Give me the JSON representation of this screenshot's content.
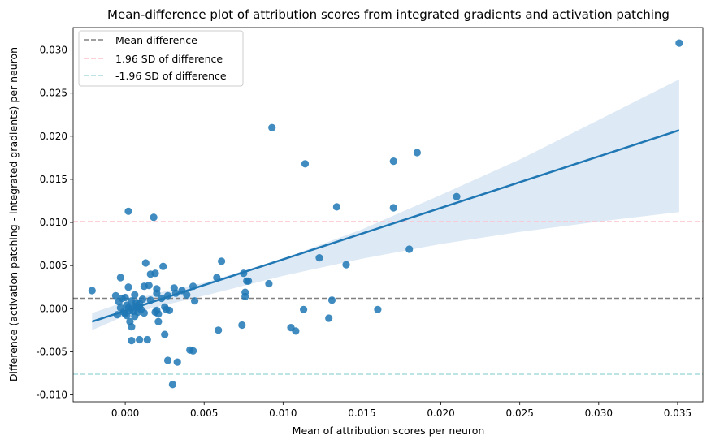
{
  "chart_data": {
    "type": "scatter",
    "title": "Mean-difference plot of attribution scores from integrated gradients and activation patching",
    "xlabel": "Mean of attribution scores per neuron",
    "ylabel": "Difference (activation patching - integrated gradients) per neuron",
    "xlim": [
      -0.0033,
      0.0366
    ],
    "ylim": [
      -0.0108,
      0.0326
    ],
    "x_ticks": [
      "0.000",
      "0.005",
      "0.010",
      "0.015",
      "0.020",
      "0.025",
      "0.030",
      "0.035"
    ],
    "y_ticks": [
      "-0.010",
      "-0.005",
      "0.000",
      "0.005",
      "0.010",
      "0.015",
      "0.020",
      "0.025",
      "0.030"
    ],
    "grid": false,
    "legend_position": "top-left",
    "points": [
      [
        -0.0021,
        0.0021
      ],
      [
        -0.0006,
        0.0015
      ],
      [
        -0.0003,
        0.0036
      ],
      [
        -0.0004,
        0.0008
      ],
      [
        -0.0005,
        -0.0007
      ],
      [
        -0.0002,
        0.0012
      ],
      [
        -0.0001,
        -0.0004
      ],
      [
        0.0,
        -0.0006
      ],
      [
        0.0001,
        0.0004
      ],
      [
        0.0002,
        0.0001
      ],
      [
        0.0003,
        -0.0002
      ],
      [
        0.0004,
        0.0009
      ],
      [
        0.0005,
        -0.0003
      ],
      [
        0.0006,
        0.0016
      ],
      [
        0.0007,
        0.0003
      ],
      [
        0.0008,
        -0.0004
      ],
      [
        0.0009,
        0.0006
      ],
      [
        0.001,
        -0.0001
      ],
      [
        0.0011,
        0.0011
      ],
      [
        0.0012,
        -0.0005
      ],
      [
        0.0002,
        0.0025
      ],
      [
        0.0003,
        -0.0015
      ],
      [
        0.0004,
        -0.0021
      ],
      [
        0.0005,
        0.0002
      ],
      [
        0.0006,
        -0.0009
      ],
      [
        0.0,
        0.0013
      ],
      [
        -0.0003,
        0.0001
      ],
      [
        0.0001,
        -0.0008
      ],
      [
        0.0007,
        0.0007
      ],
      [
        0.0009,
        0.0002
      ],
      [
        0.0013,
        0.0053
      ],
      [
        0.0015,
        0.0027
      ],
      [
        0.0016,
        0.004
      ],
      [
        0.0012,
        0.0026
      ],
      [
        0.0016,
        0.001
      ],
      [
        0.0014,
        -0.0036
      ],
      [
        0.0009,
        -0.0036
      ],
      [
        0.0004,
        -0.0037
      ],
      [
        0.0018,
        0.0106
      ],
      [
        0.0002,
        0.0113
      ],
      [
        0.0019,
        0.0041
      ],
      [
        0.002,
        0.0023
      ],
      [
        0.002,
        0.0018
      ],
      [
        0.0019,
        -0.0004
      ],
      [
        0.002,
        -0.0002
      ],
      [
        0.0021,
        -0.0006
      ],
      [
        0.0021,
        -0.0015
      ],
      [
        0.0023,
        0.0012
      ],
      [
        0.0024,
        0.0049
      ],
      [
        0.0025,
        0.0002
      ],
      [
        0.0025,
        -0.003
      ],
      [
        0.0026,
        -0.0001
      ],
      [
        0.0027,
        0.0015
      ],
      [
        0.0028,
        -0.0002
      ],
      [
        0.0027,
        -0.006
      ],
      [
        0.003,
        -0.0088
      ],
      [
        0.0031,
        0.0024
      ],
      [
        0.0032,
        0.0018
      ],
      [
        0.0033,
        -0.0062
      ],
      [
        0.0036,
        0.0021
      ],
      [
        0.0039,
        0.0016
      ],
      [
        0.0041,
        -0.0048
      ],
      [
        0.0043,
        0.0026
      ],
      [
        0.0043,
        -0.0049
      ],
      [
        0.0044,
        0.0009
      ],
      [
        0.0058,
        0.0036
      ],
      [
        0.0059,
        -0.0025
      ],
      [
        0.0061,
        0.0055
      ],
      [
        0.0074,
        -0.0019
      ],
      [
        0.0075,
        0.0041
      ],
      [
        0.0076,
        0.0019
      ],
      [
        0.0076,
        0.0014
      ],
      [
        0.0077,
        0.0032
      ],
      [
        0.0078,
        0.0032
      ],
      [
        0.0091,
        0.0029
      ],
      [
        0.0093,
        0.021
      ],
      [
        0.0105,
        -0.0022
      ],
      [
        0.0108,
        -0.0026
      ],
      [
        0.0113,
        -0.0001
      ],
      [
        0.0114,
        0.0168
      ],
      [
        0.0123,
        0.0059
      ],
      [
        0.0129,
        -0.0011
      ],
      [
        0.0131,
        0.001
      ],
      [
        0.0134,
        0.0118
      ],
      [
        0.014,
        0.0051
      ],
      [
        0.016,
        -0.0001
      ],
      [
        0.017,
        0.0171
      ],
      [
        0.017,
        0.0117
      ],
      [
        0.018,
        0.0069
      ],
      [
        0.0185,
        0.0181
      ],
      [
        0.021,
        0.013
      ],
      [
        0.0351,
        0.0308
      ]
    ],
    "regression": {
      "x": [
        -0.0021,
        0.0351
      ],
      "y": [
        -0.0015,
        0.0207
      ]
    },
    "confidence_band": {
      "x": [
        -0.0021,
        0.0,
        0.002,
        0.005,
        0.01,
        0.015,
        0.02,
        0.025,
        0.03,
        0.0351
      ],
      "lower": [
        -0.0025,
        -0.0008,
        0.0002,
        0.0015,
        0.0038,
        0.0058,
        0.0075,
        0.0089,
        0.0101,
        0.0112
      ],
      "upper": [
        -0.0005,
        0.0008,
        0.0018,
        0.003,
        0.0058,
        0.0092,
        0.0132,
        0.0173,
        0.0219,
        0.0266
      ]
    },
    "hlines": [
      {
        "name": "Mean difference",
        "y": 0.0012,
        "color": "#808080"
      },
      {
        "name": "1.96 SD of difference",
        "y": 0.0101,
        "color": "#ffc0cb"
      },
      {
        "name": "-1.96 SD of difference",
        "y": -0.0076,
        "color": "#a6dcdc"
      }
    ],
    "colors": {
      "points": "#1f77b4",
      "regression": "#1f77b4",
      "band": "#c7dbef"
    }
  }
}
